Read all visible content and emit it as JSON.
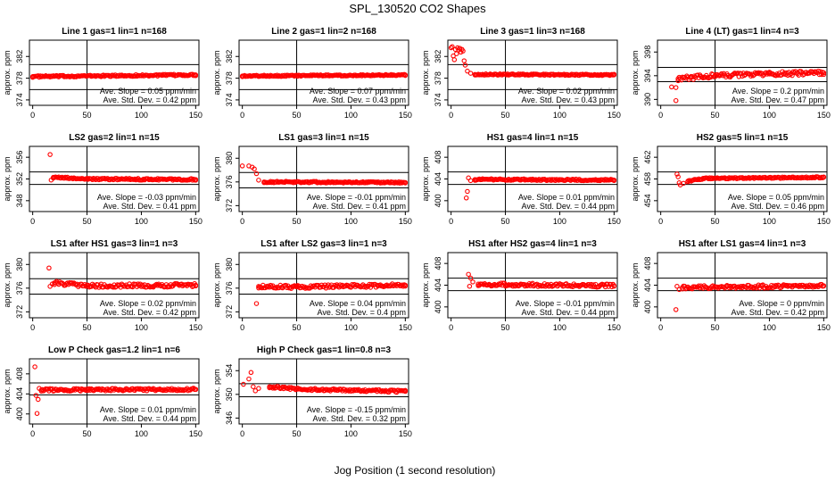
{
  "figure": {
    "title": "SPL_130520  CO2 Shapes",
    "xlabel": "Jog Position (1 second resolution)",
    "point_color": "#ff0000",
    "line_color": "#000000"
  },
  "chart_data": [
    {
      "type": "scatter",
      "title": "Line 1 gas=1 lin=1 n=168",
      "ylabel": "approx. ppm",
      "xlim": [
        -3,
        153
      ],
      "ylim": [
        373,
        385
      ],
      "xticks": [
        0,
        50,
        100,
        150
      ],
      "yticks": [
        374,
        378,
        382
      ],
      "vline": 50,
      "hlines": [
        375.9,
        380.5
      ],
      "slope_text": "Ave. Slope = 0.05 ppm/min",
      "sd_text": "Ave. Std. Dev. = 0.42 ppm",
      "series": [
        {
          "points": [
            [
              0,
              378.3
            ],
            [
              150,
              378.6
            ]
          ],
          "noise": 0.15
        }
      ]
    },
    {
      "type": "scatter",
      "title": "Line 2 gas=1 lin=2 n=168",
      "ylabel": "approx. ppm",
      "xlim": [
        -3,
        153
      ],
      "ylim": [
        373,
        385
      ],
      "xticks": [
        0,
        50,
        100,
        150
      ],
      "yticks": [
        374,
        378,
        382
      ],
      "vline": 50,
      "hlines": [
        375.9,
        380.5
      ],
      "slope_text": "Ave. Slope = 0.07 ppm/min",
      "sd_text": "Ave. Std. Dev. = 0.43 ppm",
      "series": [
        {
          "points": [
            [
              0,
              378.4
            ],
            [
              150,
              378.6
            ]
          ],
          "noise": 0.12
        }
      ]
    },
    {
      "type": "scatter",
      "title": "Line 3 gas=1 lin=3 n=168",
      "ylabel": "approx. ppm",
      "xlim": [
        -3,
        153
      ],
      "ylim": [
        373,
        385
      ],
      "xticks": [
        0,
        50,
        100,
        150
      ],
      "yticks": [
        374,
        378,
        382
      ],
      "vline": 50,
      "hlines": [
        375.9,
        380.5
      ],
      "slope_text": "Ave. Slope = 0.02 ppm/min",
      "sd_text": "Ave. Std. Dev. = 0.43 ppm",
      "series": [
        {
          "points": [
            [
              0,
              383.6
            ],
            [
              1,
              383.8
            ],
            [
              2,
              382.1
            ],
            [
              3,
              381.4
            ],
            [
              4,
              383.3
            ],
            [
              5,
              382.5
            ],
            [
              6,
              383.6
            ],
            [
              7,
              383.2
            ],
            [
              8,
              383.5
            ],
            [
              9,
              382.8
            ],
            [
              10,
              383.3
            ],
            [
              11,
              383.0
            ],
            [
              12,
              381.2
            ],
            [
              13,
              380.4
            ],
            [
              15,
              379.3
            ],
            [
              18,
              378.9
            ],
            [
              22,
              378.7
            ],
            [
              150,
              378.6
            ]
          ],
          "noise": 0.12
        }
      ]
    },
    {
      "type": "scatter",
      "title": "Line 4 (LT) gas=1 lin=4 n=3",
      "ylabel": "approx. ppm",
      "xlim": [
        -3,
        153
      ],
      "ylim": [
        389,
        400
      ],
      "xticks": [
        0,
        50,
        100,
        150
      ],
      "yticks": [
        390,
        394,
        398
      ],
      "vline": 50,
      "hlines": [
        393.0,
        395.4
      ],
      "slope_text": "Ave. Slope = 0.2 ppm/min",
      "sd_text": "Ave. Std. Dev. = 0.47 ppm",
      "series": [
        {
          "points": [
            [
              10,
              392.1
            ],
            [
              14,
              389.8
            ],
            [
              14,
              392.0
            ],
            [
              16,
              393.5
            ],
            [
              50,
              394.0
            ],
            [
              100,
              394.3
            ],
            [
              150,
              394.5
            ]
          ],
          "noise": 0.35
        }
      ]
    },
    {
      "type": "scatter",
      "title": "LS2 gas=2 lin=1 n=15",
      "ylabel": "approx. ppm",
      "xlim": [
        -3,
        153
      ],
      "ylim": [
        346,
        358
      ],
      "xticks": [
        0,
        50,
        100,
        150
      ],
      "yticks": [
        348,
        352,
        356
      ],
      "vline": 50,
      "hlines": [
        351.0,
        353.3
      ],
      "slope_text": "Ave. Slope = -0.03 ppm/min",
      "sd_text": "Ave. Std. Dev. = 0.41 ppm",
      "series": [
        {
          "points": [
            [
              16,
              356.5
            ],
            [
              17,
              351.8
            ],
            [
              19,
              352.3
            ],
            [
              50,
              352.0
            ],
            [
              150,
              351.9
            ]
          ],
          "noise": 0.15
        }
      ]
    },
    {
      "type": "scatter",
      "title": "LS1 gas=3 lin=1 n=15",
      "ylabel": "approx. ppm",
      "xlim": [
        -3,
        153
      ],
      "ylim": [
        371,
        382
      ],
      "xticks": [
        0,
        50,
        100,
        150
      ],
      "yticks": [
        372,
        376,
        380
      ],
      "vline": 50,
      "hlines": [
        375.0,
        377.6
      ],
      "slope_text": "Ave. Slope = -0.01 ppm/min",
      "sd_text": "Ave. Std. Dev. = 0.41 ppm",
      "series": [
        {
          "points": [
            [
              0,
              378.7
            ],
            [
              6,
              378.7
            ],
            [
              9,
              378.5
            ],
            [
              11,
              378.2
            ],
            [
              13,
              377.4
            ],
            [
              15,
              376.3
            ],
            [
              20,
              376.0
            ],
            [
              150,
              375.9
            ]
          ],
          "noise": 0.12
        }
      ]
    },
    {
      "type": "scatter",
      "title": "HS1 gas=4 lin=1 n=15",
      "ylabel": "approx. ppm",
      "xlim": [
        -3,
        153
      ],
      "ylim": [
        398,
        410
      ],
      "xticks": [
        0,
        50,
        100,
        150
      ],
      "yticks": [
        400,
        404,
        408
      ],
      "vline": 50,
      "hlines": [
        403.0,
        405.3
      ],
      "slope_text": "Ave. Slope = 0.01 ppm/min",
      "sd_text": "Ave. Std. Dev. = 0.44 ppm",
      "series": [
        {
          "points": [
            [
              14,
              400.5
            ],
            [
              15,
              401.7
            ],
            [
              16,
              404.2
            ],
            [
              18,
              403.7
            ],
            [
              22,
              403.9
            ],
            [
              150,
              403.8
            ]
          ],
          "noise": 0.15
        }
      ]
    },
    {
      "type": "scatter",
      "title": "HS2 gas=5 lin=1 n=15",
      "ylabel": "approx. ppm",
      "xlim": [
        -3,
        153
      ],
      "ylim": [
        452,
        464
      ],
      "xticks": [
        0,
        50,
        100,
        150
      ],
      "yticks": [
        454,
        458,
        462
      ],
      "vline": 50,
      "hlines": [
        457.0,
        459.3
      ],
      "slope_text": "Ave. Slope = 0.05 ppm/min",
      "sd_text": "Ave. Std. Dev. = 0.46 ppm",
      "series": [
        {
          "points": [
            [
              15,
              458.9
            ],
            [
              16,
              458.4
            ],
            [
              17,
              457.3
            ],
            [
              18,
              456.9
            ],
            [
              21,
              457.2
            ],
            [
              25,
              457.6
            ],
            [
              40,
              458.1
            ],
            [
              150,
              458.3
            ]
          ],
          "noise": 0.12
        }
      ]
    },
    {
      "type": "scatter",
      "title": "LS1 after HS1 gas=3 lin=1 n=3",
      "ylabel": "approx. ppm",
      "xlim": [
        -3,
        153
      ],
      "ylim": [
        371,
        382
      ],
      "xticks": [
        0,
        50,
        100,
        150
      ],
      "yticks": [
        372,
        376,
        380
      ],
      "vline": 50,
      "hlines": [
        375.0,
        377.6
      ],
      "slope_text": "Ave. Slope = 0.02 ppm/min",
      "sd_text": "Ave. Std. Dev. = 0.42 ppm",
      "series": [
        {
          "points": [
            [
              15,
              379.4
            ],
            [
              16,
              376.3
            ],
            [
              18,
              376.7
            ],
            [
              20,
              376.9
            ],
            [
              50,
              376.4
            ],
            [
              150,
              376.5
            ]
          ],
          "noise": 0.3
        }
      ]
    },
    {
      "type": "scatter",
      "title": "LS1 after LS2 gas=3 lin=1 n=3",
      "ylabel": "approx. ppm",
      "xlim": [
        -3,
        153
      ],
      "ylim": [
        371,
        382
      ],
      "xticks": [
        0,
        50,
        100,
        150
      ],
      "yticks": [
        372,
        376,
        380
      ],
      "vline": 50,
      "hlines": [
        375.0,
        377.6
      ],
      "slope_text": "Ave. Slope = 0.04 ppm/min",
      "sd_text": "Ave. Std. Dev. = 0.4 ppm",
      "series": [
        {
          "points": [
            [
              13,
              373.4
            ],
            [
              15,
              376.3
            ],
            [
              50,
              376.2
            ],
            [
              150,
              376.5
            ]
          ],
          "noise": 0.28
        }
      ]
    },
    {
      "type": "scatter",
      "title": "HS1 after HS2 gas=4 lin=1 n=3",
      "ylabel": "approx. ppm",
      "xlim": [
        -3,
        153
      ],
      "ylim": [
        398,
        410
      ],
      "xticks": [
        0,
        50,
        100,
        150
      ],
      "yticks": [
        400,
        404,
        408
      ],
      "vline": 50,
      "hlines": [
        403.0,
        405.3
      ],
      "slope_text": "Ave. Slope = -0.01 ppm/min",
      "sd_text": "Ave. Std. Dev. = 0.44 ppm",
      "series": [
        {
          "points": [
            [
              16,
              406.0
            ],
            [
              17,
              403.8
            ],
            [
              18,
              405.3
            ],
            [
              20,
              404.6
            ],
            [
              25,
              404.2
            ],
            [
              50,
              404.1
            ],
            [
              150,
              403.9
            ]
          ],
          "noise": 0.3
        }
      ]
    },
    {
      "type": "scatter",
      "title": "HS1 after LS1 gas=4 lin=1 n=3",
      "ylabel": "approx. ppm",
      "xlim": [
        -3,
        153
      ],
      "ylim": [
        398,
        410
      ],
      "xticks": [
        0,
        50,
        100,
        150
      ],
      "yticks": [
        400,
        404,
        408
      ],
      "vline": 50,
      "hlines": [
        403.0,
        405.3
      ],
      "slope_text": "Ave. Slope = 0 ppm/min",
      "sd_text": "Ave. Std. Dev. = 0.42 ppm",
      "series": [
        {
          "points": [
            [
              14,
              399.5
            ],
            [
              15,
              403.8
            ],
            [
              17,
              403.2
            ],
            [
              20,
              403.6
            ],
            [
              150,
              403.9
            ]
          ],
          "noise": 0.3
        }
      ]
    },
    {
      "type": "scatter",
      "title": "Low P Check gas=1.2 lin=1 n=6",
      "ylabel": "approx. ppm",
      "xlim": [
        -3,
        153
      ],
      "ylim": [
        398,
        411
      ],
      "xticks": [
        0,
        50,
        100,
        150
      ],
      "yticks": [
        400,
        404,
        408
      ],
      "vline": 50,
      "hlines": [
        403.8,
        406.2
      ],
      "slope_text": "Ave. Slope = 0.01 ppm/min",
      "sd_text": "Ave. Std. Dev. = 0.44 ppm",
      "series": [
        {
          "points": [
            [
              2,
              409.4
            ],
            [
              3,
              403.7
            ],
            [
              4,
              400.1
            ],
            [
              5,
              402.9
            ],
            [
              6,
              405.1
            ],
            [
              8,
              404.8
            ],
            [
              150,
              404.9
            ]
          ],
          "noise": 0.25
        }
      ]
    },
    {
      "type": "scatter",
      "title": "High P Check gas=1 lin=0.8 n=3",
      "ylabel": "approx. ppm",
      "xlim": [
        -3,
        153
      ],
      "ylim": [
        345,
        356
      ],
      "xticks": [
        0,
        50,
        100,
        150
      ],
      "yticks": [
        346,
        350,
        354
      ],
      "vline": 50,
      "hlines": [
        349.6,
        351.8
      ],
      "slope_text": "Ave. Slope = -0.15 ppm/min",
      "sd_text": "Ave. Std. Dev. = 0.32 ppm",
      "series": [
        {
          "points": [
            [
              1,
              351.7
            ],
            [
              6,
              352.6
            ],
            [
              8,
              353.7
            ],
            [
              10,
              351.3
            ],
            [
              12,
              350.6
            ],
            [
              15,
              351.0
            ],
            [
              25,
              351.3
            ],
            [
              50,
              350.9
            ],
            [
              150,
              350.5
            ]
          ],
          "noise": 0.2
        }
      ]
    }
  ]
}
